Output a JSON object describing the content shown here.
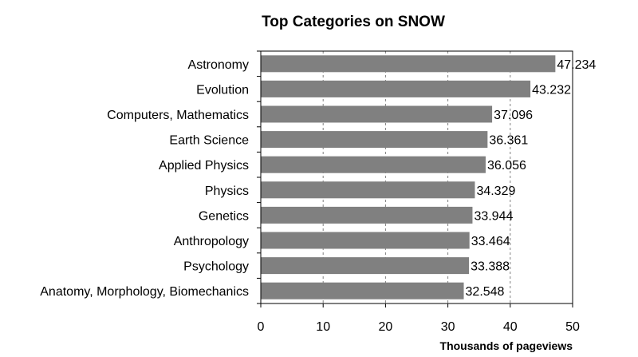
{
  "chart_data": {
    "type": "bar",
    "orientation": "horizontal",
    "title": "Top Categories on SNOW",
    "xlabel": "Thousands of pageviews",
    "ylabel": "",
    "xlim": [
      0,
      50
    ],
    "xticks": [
      "0",
      "10",
      "20",
      "30",
      "40",
      "50"
    ],
    "grid": "vertical-dashed",
    "legend": "none",
    "categories": [
      "Astronomy",
      "Evolution",
      "Computers, Mathematics",
      "Earth Science",
      "Applied Physics",
      "Physics",
      "Genetics",
      "Anthropology",
      "Psychology",
      "Anatomy, Morphology, Biomechanics"
    ],
    "values": [
      47.234,
      43.232,
      37.096,
      36.361,
      36.056,
      34.329,
      33.944,
      33.464,
      33.388,
      32.548
    ],
    "value_labels": [
      "47.234",
      "43.232",
      "37.096",
      "36.361",
      "36.056",
      "34.329",
      "33.944",
      "33.464",
      "33.388",
      "32.548"
    ]
  },
  "colors": {
    "bar": "#808080",
    "axis": "#000000",
    "grid": "#808080",
    "text": "#000000",
    "background": "#ffffff"
  }
}
